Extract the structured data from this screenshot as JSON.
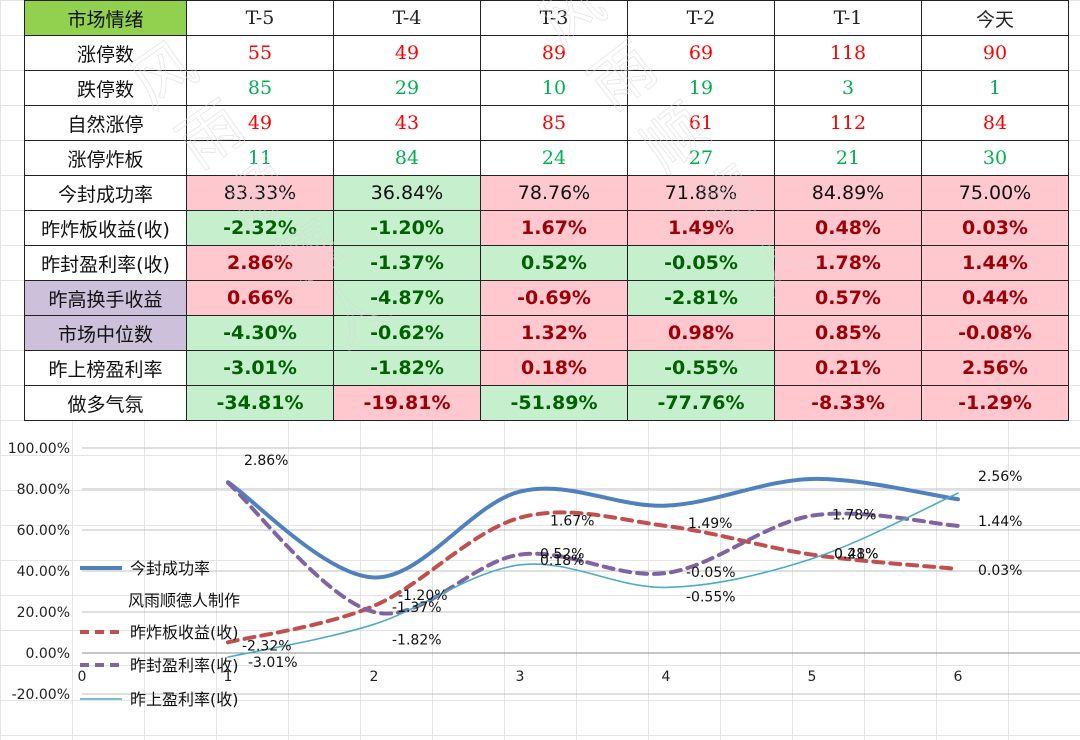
{
  "table": {
    "corner_label": "市场情绪",
    "columns": [
      "T-5",
      "T-4",
      "T-3",
      "T-2",
      "T-1",
      "今天"
    ],
    "rows": [
      {
        "label": "涨停数",
        "label_style": "plain",
        "kind": "count",
        "color": "red",
        "values": [
          "55",
          "49",
          "89",
          "69",
          "118",
          "90"
        ]
      },
      {
        "label": "跌停数",
        "label_style": "plain",
        "kind": "count",
        "color": "green",
        "values": [
          "85",
          "29",
          "10",
          "19",
          "3",
          "1"
        ]
      },
      {
        "label": "自然涨停",
        "label_style": "plain",
        "kind": "count",
        "color": "red",
        "values": [
          "49",
          "43",
          "85",
          "61",
          "112",
          "84"
        ]
      },
      {
        "label": "涨停炸板",
        "label_style": "plain",
        "kind": "count",
        "color": "green",
        "values": [
          "11",
          "84",
          "24",
          "27",
          "21",
          "30"
        ]
      },
      {
        "label": "今封成功率",
        "label_style": "plain",
        "kind": "pct",
        "plain_text": true,
        "values": [
          "83.33%",
          "36.84%",
          "78.76%",
          "71.88%",
          "84.89%",
          "75.00%"
        ],
        "fills": [
          "pos",
          "neg",
          "pos",
          "pos",
          "pos",
          "pos"
        ]
      },
      {
        "label": "昨炸板收益(收)",
        "label_style": "plain",
        "kind": "pct",
        "values": [
          "-2.32%",
          "-1.20%",
          "1.67%",
          "1.49%",
          "0.48%",
          "0.03%"
        ],
        "fills": [
          "neg",
          "neg",
          "pos",
          "pos",
          "pos",
          "pos"
        ]
      },
      {
        "label": "昨封盈利率(收)",
        "label_style": "plain",
        "kind": "pct",
        "values": [
          "2.86%",
          "-1.37%",
          "0.52%",
          "-0.05%",
          "1.78%",
          "1.44%"
        ],
        "fills": [
          "pos",
          "neg",
          "neg",
          "neg",
          "pos",
          "pos"
        ]
      },
      {
        "label": "昨高换手收益",
        "label_style": "purple",
        "kind": "pct",
        "values": [
          "0.66%",
          "-4.87%",
          "-0.69%",
          "-2.81%",
          "0.57%",
          "0.44%"
        ],
        "fills": [
          "pos",
          "neg",
          "pos",
          "neg",
          "pos",
          "pos"
        ]
      },
      {
        "label": "市场中位数",
        "label_style": "purple",
        "kind": "pct",
        "values": [
          "-4.30%",
          "-0.62%",
          "1.32%",
          "0.98%",
          "0.85%",
          "-0.08%"
        ],
        "fills": [
          "neg",
          "neg",
          "pos",
          "pos",
          "pos",
          "pos"
        ]
      },
      {
        "label": "昨上榜盈利率",
        "label_style": "plain",
        "kind": "pct",
        "values": [
          "-3.01%",
          "-1.82%",
          "0.18%",
          "-0.55%",
          "0.21%",
          "2.56%"
        ],
        "fills": [
          "neg",
          "neg",
          "pos",
          "neg",
          "pos",
          "pos"
        ]
      },
      {
        "label": "做多气氛",
        "label_style": "plain",
        "kind": "pct",
        "values": [
          "-34.81%",
          "-19.81%",
          "-51.89%",
          "-77.76%",
          "-8.33%",
          "-1.29%"
        ],
        "fills": [
          "neg",
          "pos",
          "neg",
          "neg",
          "pos",
          "pos"
        ]
      }
    ]
  },
  "watermark_text": "风雨顺德人",
  "chart_data": {
    "type": "line",
    "x": [
      1,
      2,
      3,
      4,
      5,
      6
    ],
    "xlim": [
      0,
      7
    ],
    "x_ticks": [
      "0",
      "1",
      "2",
      "3",
      "4",
      "5",
      "6"
    ],
    "ylim": [
      -20,
      100
    ],
    "y_ticks": [
      "-20.00%",
      "0.00%",
      "20.00%",
      "40.00%",
      "60.00%",
      "80.00%",
      "100.00%"
    ],
    "y_tick_values": [
      -20,
      0,
      20,
      40,
      60,
      80,
      100
    ],
    "grid": "horizontal",
    "series": [
      {
        "name": "今封成功率",
        "color": "#4f81bd",
        "style": "solid-thick",
        "values": [
          83.33,
          36.84,
          78.76,
          71.88,
          84.89,
          75.0
        ],
        "labels": []
      },
      {
        "name": "昨炸板收益(收)",
        "color": "#c0504d",
        "style": "dashed-thick",
        "values": [
          5.2,
          23,
          66,
          62,
          48,
          41
        ],
        "labels": [
          "-2.32%",
          "-1.20%",
          "1.67%",
          "1.49%",
          "0.48%",
          "0.03%"
        ]
      },
      {
        "name": "昨封盈利率(收)",
        "color": "#8064a2",
        "style": "dashed-thick",
        "values": [
          83,
          20,
          48,
          39,
          67,
          62
        ],
        "labels": [
          "2.86%",
          "-1.37%",
          "0.52%",
          "-0.05%",
          "1.78%",
          "1.44%"
        ]
      },
      {
        "name": "昨上盈利率(收)",
        "color": "#4bacc6",
        "style": "solid-thin",
        "values": [
          -2,
          14,
          43,
          32,
          46,
          78
        ],
        "labels": [
          "-3.01%",
          "-1.82%",
          "0.18%",
          "-0.55%",
          "0.21%",
          "2.56%"
        ]
      }
    ],
    "legend_note": "风雨顺德人制作",
    "legend_position": "left"
  }
}
